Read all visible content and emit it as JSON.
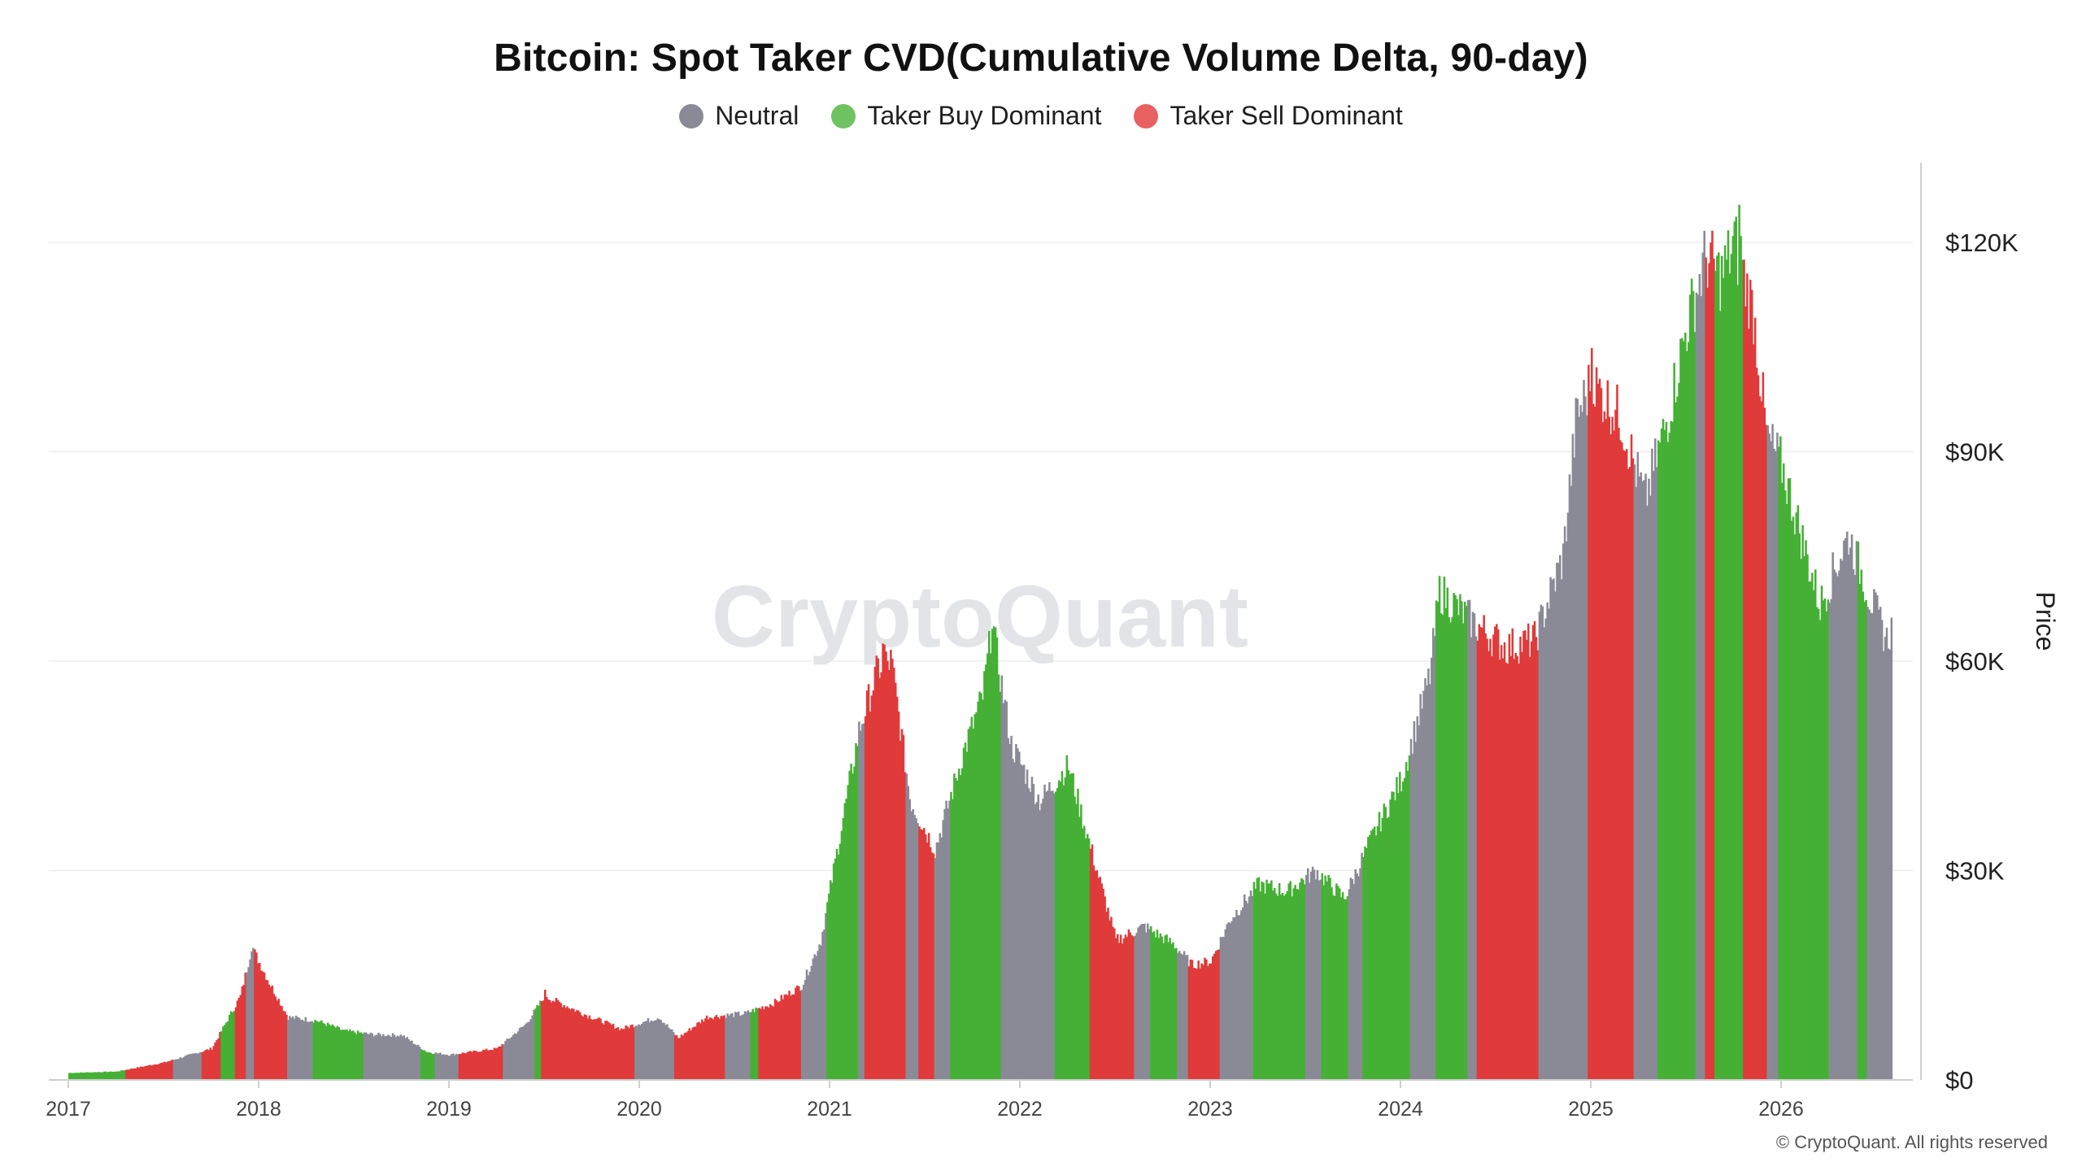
{
  "chart_data": {
    "type": "bar",
    "title": "Bitcoin: Spot Taker CVD(Cumulative Volume Delta, 90-day)",
    "ylabel": "Price",
    "ylim": [
      0,
      130000
    ],
    "grid": true,
    "legend_placement": "top-center",
    "watermark": "CryptoQuant",
    "copyright": "© CryptoQuant. All rights reserved",
    "y_ticks": [
      {
        "value": 0,
        "label": "$0"
      },
      {
        "value": 30000,
        "label": "$30K"
      },
      {
        "value": 60000,
        "label": "$60K"
      },
      {
        "value": 90000,
        "label": "$90K"
      },
      {
        "value": 120000,
        "label": "$120K"
      }
    ],
    "x_ticks": [
      {
        "value": 2017,
        "label": "2017"
      },
      {
        "value": 2018,
        "label": "2018"
      },
      {
        "value": 2019,
        "label": "2019"
      },
      {
        "value": 2020,
        "label": "2020"
      },
      {
        "value": 2021,
        "label": "2021"
      },
      {
        "value": 2022,
        "label": "2022"
      },
      {
        "value": 2023,
        "label": "2023"
      },
      {
        "value": 2024,
        "label": "2024"
      },
      {
        "value": 2025,
        "label": "2025"
      },
      {
        "value": 2026,
        "label": "2026"
      }
    ],
    "legend": [
      {
        "key": "N",
        "label": "Neutral",
        "color": "#8a8a96"
      },
      {
        "key": "B",
        "label": "Taker Buy Dominant",
        "color": "#45b035"
      },
      {
        "key": "S",
        "label": "Taker Sell Dominant",
        "color": "#e03a3a"
      }
    ],
    "price_path": [
      [
        2017.0,
        1000
      ],
      [
        2017.25,
        1200
      ],
      [
        2017.5,
        2500
      ],
      [
        2017.75,
        4500
      ],
      [
        2017.9,
        12000
      ],
      [
        2017.96,
        19000
      ],
      [
        2018.05,
        14000
      ],
      [
        2018.15,
        9000
      ],
      [
        2018.3,
        8500
      ],
      [
        2018.45,
        7000
      ],
      [
        2018.6,
        6500
      ],
      [
        2018.75,
        6400
      ],
      [
        2018.88,
        4000
      ],
      [
        2019.0,
        3600
      ],
      [
        2019.25,
        4500
      ],
      [
        2019.4,
        8000
      ],
      [
        2019.5,
        12000
      ],
      [
        2019.7,
        9500
      ],
      [
        2019.9,
        7300
      ],
      [
        2020.1,
        9000
      ],
      [
        2020.2,
        6000
      ],
      [
        2020.35,
        9000
      ],
      [
        2020.55,
        9500
      ],
      [
        2020.7,
        11000
      ],
      [
        2020.85,
        13500
      ],
      [
        2020.95,
        20000
      ],
      [
        2021.05,
        35000
      ],
      [
        2021.15,
        50000
      ],
      [
        2021.25,
        59000
      ],
      [
        2021.32,
        60000
      ],
      [
        2021.42,
        40000
      ],
      [
        2021.55,
        33000
      ],
      [
        2021.7,
        47000
      ],
      [
        2021.8,
        55000
      ],
      [
        2021.85,
        65000
      ],
      [
        2021.95,
        48000
      ],
      [
        2022.1,
        40000
      ],
      [
        2022.25,
        45000
      ],
      [
        2022.4,
        30000
      ],
      [
        2022.5,
        20000
      ],
      [
        2022.65,
        22000
      ],
      [
        2022.8,
        19500
      ],
      [
        2022.9,
        16500
      ],
      [
        2023.0,
        17000
      ],
      [
        2023.1,
        23000
      ],
      [
        2023.25,
        28000
      ],
      [
        2023.4,
        27000
      ],
      [
        2023.55,
        30000
      ],
      [
        2023.7,
        26000
      ],
      [
        2023.85,
        35000
      ],
      [
        2024.0,
        43000
      ],
      [
        2024.15,
        58000
      ],
      [
        2024.2,
        70000
      ],
      [
        2024.4,
        65000
      ],
      [
        2024.55,
        62000
      ],
      [
        2024.7,
        63000
      ],
      [
        2024.85,
        75000
      ],
      [
        2024.92,
        95000
      ],
      [
        2025.0,
        100000
      ],
      [
        2025.15,
        95000
      ],
      [
        2025.28,
        83000
      ],
      [
        2025.4,
        95000
      ],
      [
        2025.5,
        108000
      ],
      [
        2025.6,
        118000
      ],
      [
        2025.68,
        115000
      ],
      [
        2025.75,
        120000
      ],
      [
        2025.85,
        110000
      ],
      [
        2025.92,
        92000
      ],
      [
        2026.0,
        88000
      ],
      [
        2026.1,
        78000
      ],
      [
        2026.2,
        68000
      ],
      [
        2026.35,
        78000
      ],
      [
        2026.45,
        70000
      ],
      [
        2026.55,
        63000
      ],
      [
        2026.58,
        65000
      ]
    ],
    "price_peaks": [
      [
        2017.96,
        19500
      ],
      [
        2019.5,
        12500
      ],
      [
        2021.28,
        63000
      ],
      [
        2021.85,
        67000
      ],
      [
        2025.0,
        105000
      ],
      [
        2025.78,
        125000
      ]
    ],
    "regimes": [
      [
        2017.0,
        2017.3,
        "B"
      ],
      [
        2017.3,
        2017.55,
        "S"
      ],
      [
        2017.55,
        2017.7,
        "N"
      ],
      [
        2017.7,
        2017.8,
        "S"
      ],
      [
        2017.8,
        2017.87,
        "B"
      ],
      [
        2017.87,
        2017.93,
        "S"
      ],
      [
        2017.93,
        2017.97,
        "N"
      ],
      [
        2017.97,
        2018.15,
        "S"
      ],
      [
        2018.15,
        2018.28,
        "N"
      ],
      [
        2018.28,
        2018.55,
        "B"
      ],
      [
        2018.55,
        2018.85,
        "N"
      ],
      [
        2018.85,
        2018.92,
        "B"
      ],
      [
        2018.92,
        2019.05,
        "N"
      ],
      [
        2019.05,
        2019.28,
        "S"
      ],
      [
        2019.28,
        2019.45,
        "N"
      ],
      [
        2019.45,
        2019.48,
        "B"
      ],
      [
        2019.48,
        2019.97,
        "S"
      ],
      [
        2019.97,
        2020.18,
        "N"
      ],
      [
        2020.18,
        2020.45,
        "S"
      ],
      [
        2020.45,
        2020.58,
        "N"
      ],
      [
        2020.58,
        2020.62,
        "B"
      ],
      [
        2020.62,
        2020.85,
        "S"
      ],
      [
        2020.85,
        2020.98,
        "N"
      ],
      [
        2020.98,
        2021.15,
        "B"
      ],
      [
        2021.15,
        2021.18,
        "N"
      ],
      [
        2021.18,
        2021.4,
        "S"
      ],
      [
        2021.4,
        2021.46,
        "N"
      ],
      [
        2021.46,
        2021.55,
        "S"
      ],
      [
        2021.55,
        2021.63,
        "N"
      ],
      [
        2021.63,
        2021.9,
        "B"
      ],
      [
        2021.9,
        2022.18,
        "N"
      ],
      [
        2022.18,
        2022.36,
        "B"
      ],
      [
        2022.36,
        2022.45,
        "S"
      ],
      [
        2022.45,
        2022.6,
        "S"
      ],
      [
        2022.6,
        2022.68,
        "N"
      ],
      [
        2022.68,
        2022.82,
        "B"
      ],
      [
        2022.82,
        2022.88,
        "N"
      ],
      [
        2022.88,
        2023.05,
        "S"
      ],
      [
        2023.05,
        2023.22,
        "N"
      ],
      [
        2023.22,
        2023.5,
        "B"
      ],
      [
        2023.5,
        2023.58,
        "N"
      ],
      [
        2023.58,
        2023.72,
        "B"
      ],
      [
        2023.72,
        2023.8,
        "N"
      ],
      [
        2023.8,
        2024.05,
        "B"
      ],
      [
        2024.05,
        2024.18,
        "N"
      ],
      [
        2024.18,
        2024.35,
        "B"
      ],
      [
        2024.35,
        2024.4,
        "N"
      ],
      [
        2024.4,
        2024.72,
        "S"
      ],
      [
        2024.72,
        2024.98,
        "N"
      ],
      [
        2024.98,
        2025.22,
        "S"
      ],
      [
        2025.22,
        2025.35,
        "N"
      ],
      [
        2025.35,
        2025.55,
        "B"
      ],
      [
        2025.55,
        2025.6,
        "N"
      ],
      [
        2025.6,
        2025.65,
        "S"
      ],
      [
        2025.65,
        2025.8,
        "B"
      ],
      [
        2025.8,
        2025.92,
        "S"
      ],
      [
        2025.92,
        2025.98,
        "N"
      ],
      [
        2025.98,
        2026.25,
        "B"
      ],
      [
        2026.25,
        2026.4,
        "N"
      ],
      [
        2026.4,
        2026.45,
        "B"
      ],
      [
        2026.45,
        2026.58,
        "N"
      ]
    ]
  }
}
